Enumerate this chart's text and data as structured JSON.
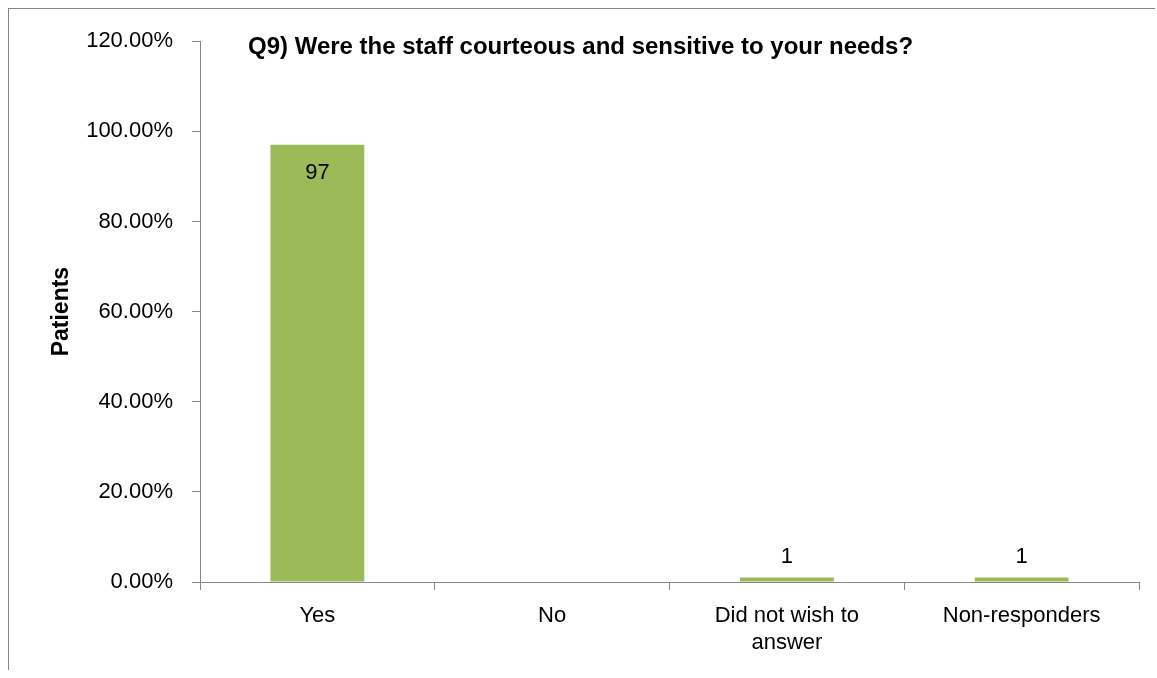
{
  "chart_data": {
    "type": "bar",
    "title": "Q9) Were the staff courteous and sensitive to your needs?",
    "ylabel": "Patients",
    "categories": [
      "Yes",
      "No",
      "Did not wish to answer",
      "Non-responders"
    ],
    "values": [
      97,
      0,
      1,
      1
    ],
    "color": "#9bbb59",
    "value_labels": [
      "97",
      null,
      "1",
      "1"
    ],
    "ylim": [
      0,
      120
    ],
    "yticks": [
      {
        "value": 0,
        "label": "0.00%"
      },
      {
        "value": 20,
        "label": "20.00%"
      },
      {
        "value": 40,
        "label": "40.00%"
      },
      {
        "value": 60,
        "label": "60.00%"
      },
      {
        "value": 80,
        "label": "80.00%"
      },
      {
        "value": 100,
        "label": "100.00%"
      },
      {
        "value": 120,
        "label": "120.00%"
      }
    ]
  }
}
